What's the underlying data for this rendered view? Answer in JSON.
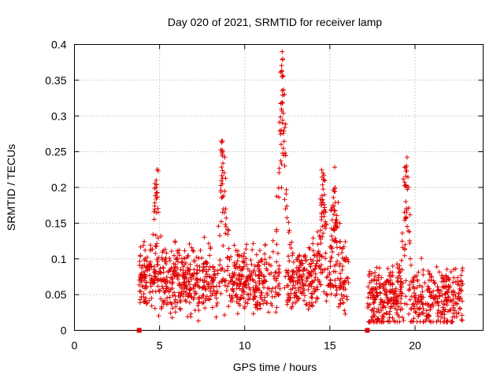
{
  "chart_data": {
    "type": "scatter",
    "title": "Day 020 of 2021, SRMTID for receiver lamp",
    "xlabel": "GPS time / hours",
    "ylabel": "SRMTID / TECUs",
    "xlim": [
      0,
      24
    ],
    "ylim": [
      0,
      0.4
    ],
    "xticks": [
      0,
      5,
      10,
      15,
      20
    ],
    "yticks": [
      0,
      0.05,
      0.1,
      0.15,
      0.2,
      0.25,
      0.3,
      0.35,
      0.4
    ],
    "xtick_labels": [
      "0",
      "5",
      "10",
      "15",
      "20"
    ],
    "ytick_labels": [
      "0",
      "0.05",
      "0.1",
      "0.15",
      "0.2",
      "0.25",
      "0.3",
      "0.35",
      "0.4"
    ],
    "grid": true,
    "marker": "+",
    "color": "#e00000",
    "segments": [
      {
        "x0": 3.8,
        "x1": 16.1,
        "base": 0.07
      },
      {
        "x0": 17.2,
        "x1": 22.8,
        "base": 0.045
      }
    ],
    "peaks": [
      {
        "x": 4.8,
        "y": 0.21
      },
      {
        "x": 8.7,
        "y": 0.265
      },
      {
        "x": 12.2,
        "y": 0.39
      },
      {
        "x": 14.6,
        "y": 0.22
      },
      {
        "x": 15.3,
        "y": 0.2
      },
      {
        "x": 19.5,
        "y": 0.23
      }
    ],
    "zero_markers": [
      {
        "x": 3.8,
        "y": 0
      },
      {
        "x": 17.2,
        "y": 0
      }
    ]
  }
}
